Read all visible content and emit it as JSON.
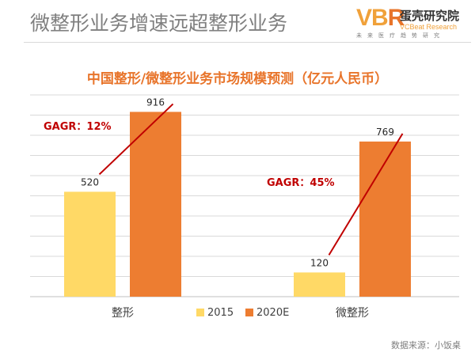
{
  "header": {
    "title": "微整形业务增速远超整形业务"
  },
  "logo": {
    "mark": "VB",
    "mark_accent": "R",
    "name_cn": "蛋壳研究院",
    "name_en": "VCBeat Research",
    "tagline": "未来医疗趋势研究"
  },
  "source": "数据来源：小饭桌",
  "colors": {
    "title_orange": "#e8742a",
    "series_2015": "#ffd966",
    "series_2020E": "#ed7d31",
    "annotation_red": "#c00000"
  },
  "chart_data": {
    "type": "bar",
    "title": "中国整形/微整形业务市场规模预测（亿元人民币）",
    "categories": [
      "整形",
      "微整形"
    ],
    "series": [
      {
        "name": "2015",
        "values": [
          520,
          120
        ]
      },
      {
        "name": "2020E",
        "values": [
          916,
          769
        ]
      }
    ],
    "ylim": [
      0,
      1000
    ],
    "grid": true,
    "legend": "bottom-center",
    "annotations": [
      {
        "text": "GAGR：12%",
        "category": "整形",
        "from_value": 520,
        "to_value": 916
      },
      {
        "text": "GAGR：45%",
        "category": "微整形",
        "from_value": 120,
        "to_value": 769
      }
    ]
  }
}
